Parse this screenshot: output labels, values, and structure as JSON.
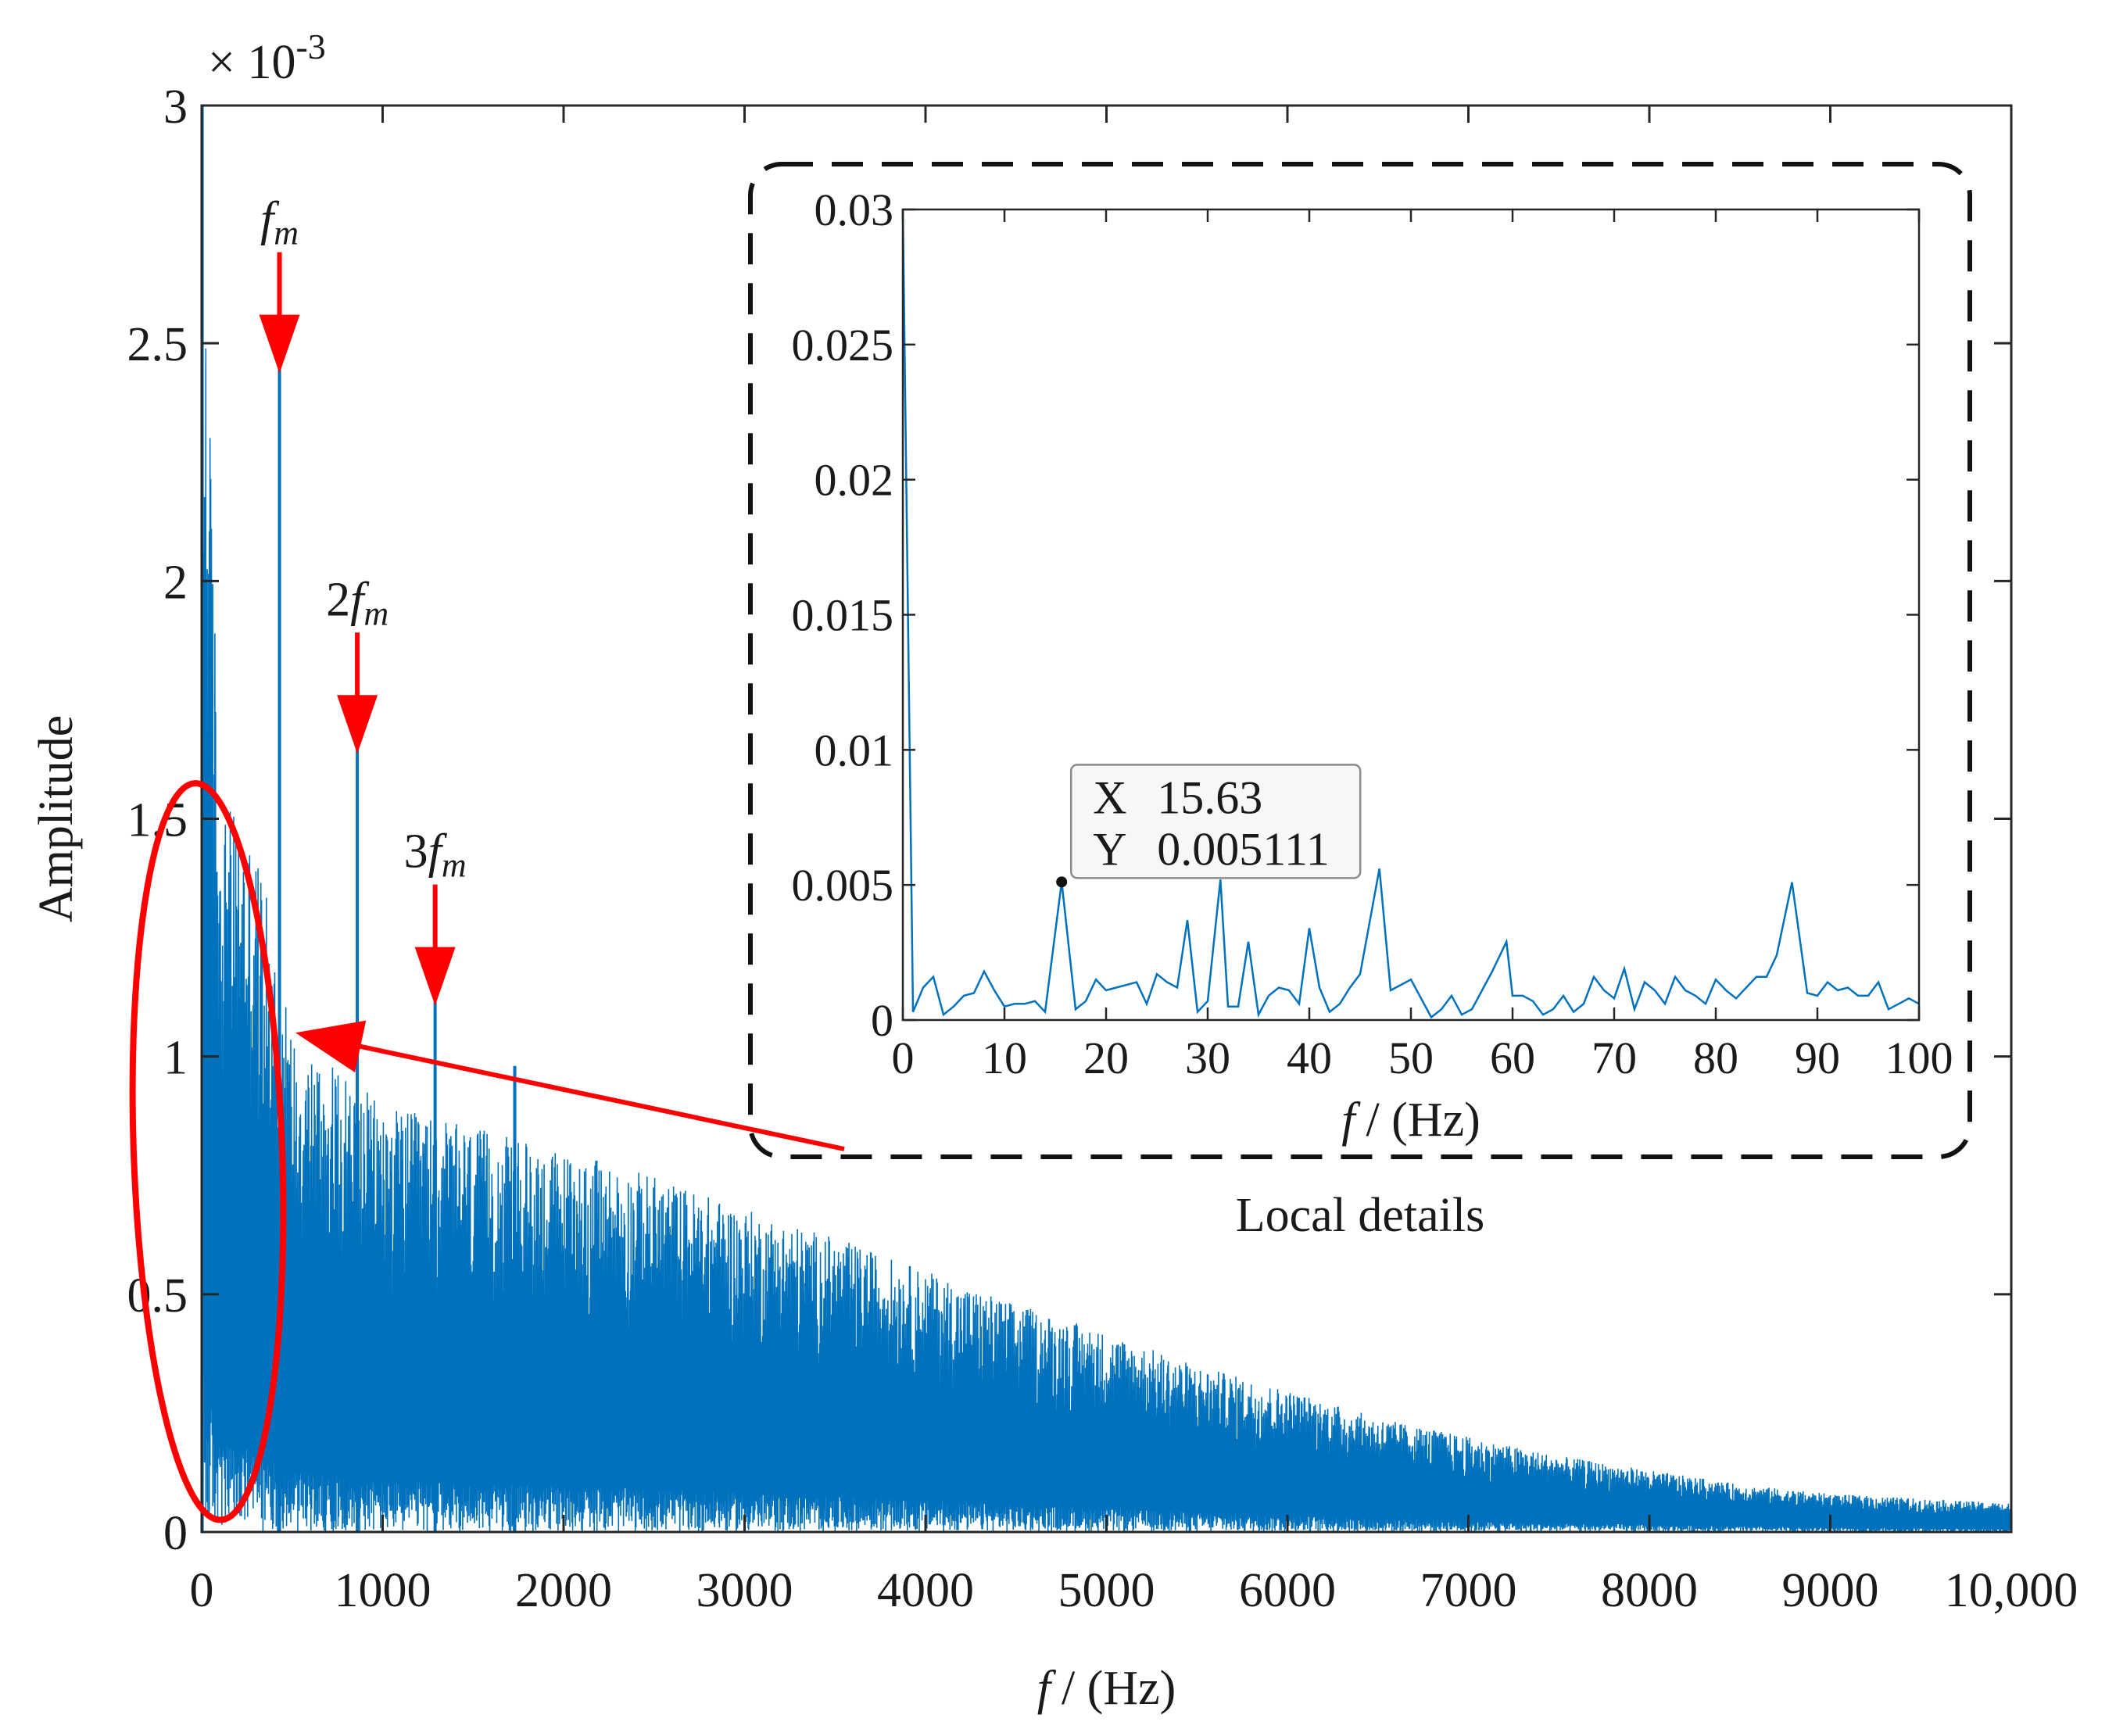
{
  "chart_data": [
    {
      "type": "line",
      "role": "main-spectrum",
      "xlabel_var": "f",
      "xlabel_unit": "/ (Hz)",
      "ylabel": "Amplitude",
      "y_exponent_label": "× 10-3",
      "y_exponent_base": "× 10",
      "y_exponent_power": "-3",
      "xlim": [
        0,
        10000
      ],
      "ylim": [
        0,
        3
      ],
      "y_scale_factor": 0.001,
      "x_ticks": [
        0,
        1000,
        2000,
        3000,
        4000,
        5000,
        6000,
        7000,
        8000,
        9000,
        10000
      ],
      "x_tick_labels": [
        "0",
        "1000",
        "2000",
        "3000",
        "4000",
        "5000",
        "6000",
        "7000",
        "8000",
        "9000",
        "10,000"
      ],
      "y_ticks": [
        0,
        0.5,
        1,
        1.5,
        2,
        2.5,
        3
      ],
      "y_tick_labels": [
        "0",
        "0.5",
        "1",
        "1.5",
        "2",
        "2.5",
        "3"
      ],
      "line_color": "#0072BD",
      "envelope": {
        "x": [
          0,
          100,
          300,
          500,
          1000,
          1500,
          2000,
          2500,
          3000,
          3500,
          4000,
          4500,
          5000,
          5500,
          6000,
          6500,
          7000,
          7500,
          8000,
          8500,
          9000,
          9500,
          10000
        ],
        "y_max": [
          3.0,
          1.55,
          1.45,
          1.05,
          0.9,
          0.85,
          0.8,
          0.75,
          0.68,
          0.62,
          0.55,
          0.48,
          0.42,
          0.35,
          0.3,
          0.24,
          0.2,
          0.16,
          0.13,
          0.1,
          0.08,
          0.07,
          0.06
        ]
      },
      "peaks": [
        {
          "x": 430,
          "y": 2.45,
          "label_base": "f",
          "label_sub": "m",
          "label_prefix": ""
        },
        {
          "x": 860,
          "y": 1.65,
          "label_base": "f",
          "label_sub": "m",
          "label_prefix": "2"
        },
        {
          "x": 1290,
          "y": 1.12,
          "label_base": "f",
          "label_sub": "m",
          "label_prefix": "3"
        },
        {
          "x": 1730,
          "y": 0.98,
          "label_base": "",
          "label_sub": "",
          "label_prefix": ""
        }
      ],
      "annotations": {
        "marker_color": "#FF0000"
      }
    },
    {
      "type": "line",
      "role": "inset-local-details",
      "title": "Local details",
      "xlabel_var": "f",
      "xlabel_unit": "/ (Hz)",
      "xlim": [
        0,
        100
      ],
      "ylim": [
        0,
        0.03
      ],
      "x_ticks": [
        0,
        10,
        20,
        30,
        40,
        50,
        60,
        70,
        80,
        90,
        100
      ],
      "x_tick_labels": [
        "0",
        "10",
        "20",
        "30",
        "40",
        "50",
        "60",
        "70",
        "80",
        "90",
        "100"
      ],
      "y_ticks": [
        0,
        0.005,
        0.01,
        0.015,
        0.02,
        0.025,
        0.03
      ],
      "y_tick_labels": [
        "0",
        "0.005",
        "0.01",
        "0.015",
        "0.02",
        "0.025",
        "0.03"
      ],
      "line_color": "#0072BD",
      "x": [
        0,
        1,
        2,
        3,
        4,
        5,
        6,
        7,
        8,
        9,
        10,
        11,
        12,
        13,
        14,
        15.63,
        17,
        18,
        19,
        20,
        21,
        22,
        23,
        24,
        25,
        26,
        27,
        28,
        29,
        30,
        31.25,
        32,
        33,
        34,
        35,
        36,
        37,
        38,
        39,
        40,
        41,
        42,
        43,
        44,
        45,
        46.9,
        48,
        49,
        50,
        51,
        52,
        53,
        54,
        55,
        56,
        57,
        58,
        59.4,
        60,
        61,
        62,
        63,
        64,
        65,
        66,
        67,
        68,
        69,
        70,
        71,
        72,
        73,
        74,
        75,
        76,
        77,
        78,
        79,
        80,
        81,
        82,
        83,
        84,
        85,
        86,
        87.5,
        89,
        90,
        91,
        92,
        93,
        94,
        95,
        96,
        97,
        98,
        99,
        100
      ],
      "y": [
        0.03,
        0.0003,
        0.0012,
        0.0016,
        0.0002,
        0.0005,
        0.0009,
        0.001,
        0.0018,
        0.0011,
        0.0005,
        0.0006,
        0.0006,
        0.0007,
        0.0003,
        0.005111,
        0.0004,
        0.0007,
        0.0015,
        0.0011,
        0.0012,
        0.0013,
        0.0014,
        0.0006,
        0.0017,
        0.0014,
        0.0012,
        0.0037,
        0.0003,
        0.0007,
        0.0052,
        0.0005,
        0.0005,
        0.0029,
        0.0002,
        0.0009,
        0.0012,
        0.0011,
        0.0006,
        0.0034,
        0.0012,
        0.0003,
        0.0006,
        0.0012,
        0.0017,
        0.0056,
        0.0011,
        0.0013,
        0.0015,
        0.0008,
        0.0001,
        0.0004,
        0.0009,
        0.0002,
        0.0004,
        0.0011,
        0.0018,
        0.0029,
        0.0009,
        0.0009,
        0.0007,
        0.0002,
        0.0004,
        0.0009,
        0.0003,
        0.0006,
        0.0016,
        0.0011,
        0.0008,
        0.0019,
        0.0004,
        0.0014,
        0.0011,
        0.0006,
        0.0016,
        0.0011,
        0.0009,
        0.0006,
        0.0015,
        0.0011,
        0.0008,
        0.0012,
        0.0016,
        0.0016,
        0.0024,
        0.0051,
        0.001,
        0.0009,
        0.0014,
        0.0011,
        0.0012,
        0.0009,
        0.0009,
        0.0014,
        0.0004,
        0.0006,
        0.0008,
        0.0006
      ],
      "datatip": {
        "x": 15.63,
        "y": 0.005111,
        "x_label": "X",
        "y_label": "Y",
        "x_text": "15.63",
        "y_text": "0.005111"
      }
    }
  ]
}
